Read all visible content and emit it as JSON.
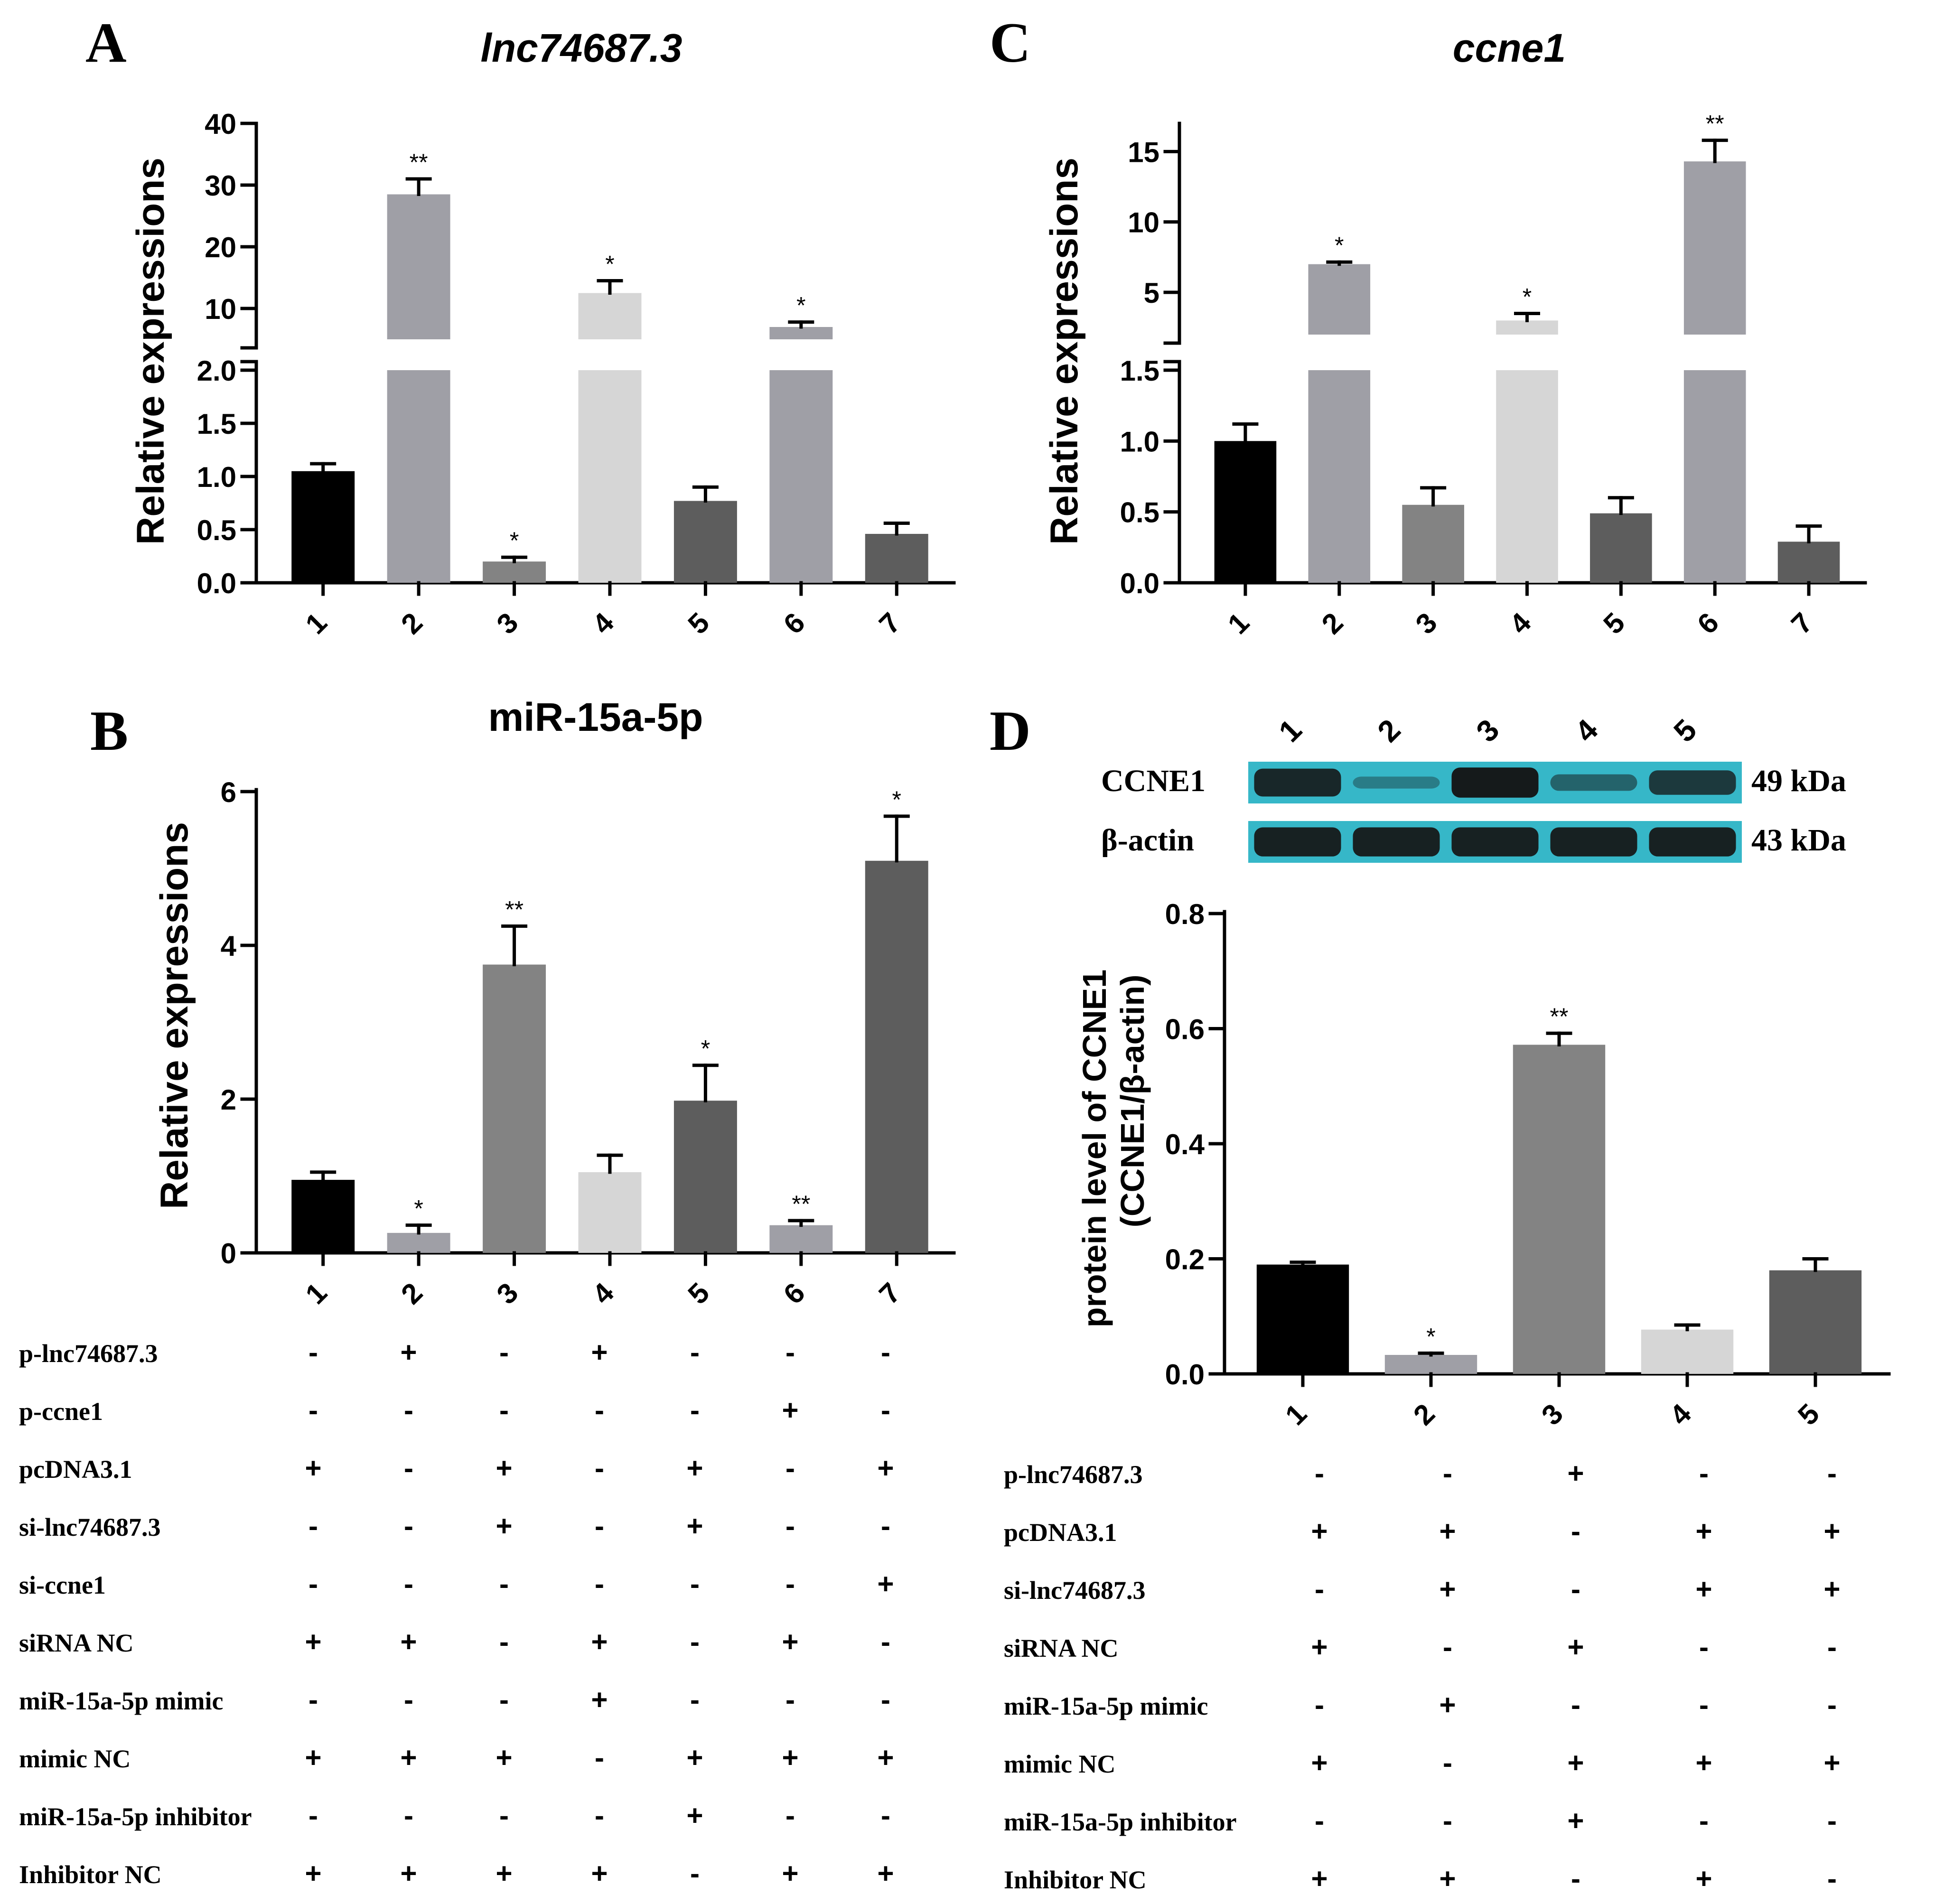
{
  "colors": {
    "black": "#000000",
    "dark_gray": "#5d5d5d",
    "mid_gray": "#838383",
    "light_gray": "#9f9fa6",
    "pale_gray": "#d6d6d6",
    "blot_bg": "#36b7c8",
    "band": "#141414"
  },
  "chart_data": [
    {
      "id": "A",
      "panel_letter": "A",
      "type": "bar",
      "title": "lnc74687.3",
      "ylabel": "Relative expressions",
      "categories": [
        "1",
        "2",
        "3",
        "4",
        "5",
        "6",
        "7"
      ],
      "values": [
        1.05,
        28.5,
        0.2,
        12.5,
        0.77,
        7.0,
        0.46
      ],
      "errors": [
        0.07,
        2.5,
        0.04,
        2.0,
        0.13,
        0.8,
        0.1
      ],
      "significance": [
        "",
        "**",
        "*",
        "*",
        "",
        "*",
        ""
      ],
      "bar_colors": [
        "black",
        "light_gray",
        "mid_gray",
        "pale_gray",
        "dark_gray",
        "light_gray",
        "dark_gray"
      ],
      "broken_axis": {
        "lower_range": [
          0,
          2.0
        ],
        "upper_range": [
          5,
          40
        ],
        "lower_ticks": [
          "0.0",
          "0.5",
          "1.0",
          "1.5",
          "2.0"
        ],
        "upper_ticks": [
          "10",
          "20",
          "30",
          "40"
        ]
      }
    },
    {
      "id": "C",
      "panel_letter": "C",
      "type": "bar",
      "title": "ccne1",
      "ylabel": "Relative expressions",
      "categories": [
        "1",
        "2",
        "3",
        "4",
        "5",
        "6",
        "7"
      ],
      "values": [
        1.0,
        7.0,
        0.55,
        3.0,
        0.49,
        14.3,
        0.29
      ],
      "errors": [
        0.12,
        0.15,
        0.12,
        0.5,
        0.11,
        1.5,
        0.11
      ],
      "significance": [
        "",
        "*",
        "",
        "*",
        "",
        "**",
        ""
      ],
      "bar_colors": [
        "black",
        "light_gray",
        "mid_gray",
        "pale_gray",
        "dark_gray",
        "light_gray",
        "dark_gray"
      ],
      "broken_axis": {
        "lower_range": [
          0,
          1.5
        ],
        "upper_range": [
          2,
          17
        ],
        "lower_ticks": [
          "0.0",
          "0.5",
          "1.0",
          "1.5"
        ],
        "upper_ticks": [
          "5",
          "10",
          "15"
        ]
      }
    },
    {
      "id": "B",
      "panel_letter": "B",
      "type": "bar",
      "title": "miR-15a-5p",
      "ylabel": "Relative expressions",
      "categories": [
        "1",
        "2",
        "3",
        "4",
        "5",
        "6",
        "7"
      ],
      "values": [
        0.95,
        0.26,
        3.75,
        1.05,
        1.98,
        0.36,
        5.1
      ],
      "errors": [
        0.1,
        0.1,
        0.5,
        0.22,
        0.46,
        0.06,
        0.58
      ],
      "significance": [
        "",
        "*",
        "**",
        "",
        "*",
        "**",
        "*"
      ],
      "bar_colors": [
        "black",
        "light_gray",
        "mid_gray",
        "pale_gray",
        "dark_gray",
        "light_gray",
        "dark_gray"
      ],
      "ylim": [
        0,
        6
      ],
      "yticks": [
        "0",
        "2",
        "4",
        "6"
      ]
    },
    {
      "id": "D",
      "panel_letter": "D",
      "type": "bar",
      "title": "",
      "ylabel_line1": "protein level of CCNE1",
      "ylabel_line2": "(CCNE1/β-actin)",
      "categories": [
        "1",
        "2",
        "3",
        "4",
        "5"
      ],
      "values": [
        0.19,
        0.033,
        0.572,
        0.077,
        0.18
      ],
      "errors": [
        0.004,
        0.003,
        0.02,
        0.008,
        0.02
      ],
      "significance": [
        "",
        "*",
        "**",
        "",
        ""
      ],
      "bar_colors": [
        "black",
        "light_gray",
        "mid_gray",
        "pale_gray",
        "dark_gray"
      ],
      "ylim": [
        0,
        0.8
      ],
      "yticks": [
        "0.0",
        "0.2",
        "0.4",
        "0.6",
        "0.8"
      ]
    }
  ],
  "blot": {
    "lane_labels": [
      "1",
      "2",
      "3",
      "4",
      "5"
    ],
    "rows": [
      {
        "name": "CCNE1",
        "size": "49 kDa",
        "intensity": [
          0.85,
          0.15,
          0.95,
          0.35,
          0.7
        ]
      },
      {
        "name": "β-actin",
        "size": "43 kDa",
        "intensity": [
          0.9,
          0.9,
          0.9,
          0.9,
          0.9
        ]
      }
    ]
  },
  "tables": {
    "B": {
      "rows": [
        {
          "label": "p-lnc74687.3",
          "marks": [
            "-",
            "+",
            "-",
            "+",
            "-",
            "-",
            "-"
          ]
        },
        {
          "label": "p-ccne1",
          "marks": [
            "-",
            "-",
            "-",
            "-",
            "-",
            "+",
            "-"
          ]
        },
        {
          "label": "pcDNA3.1",
          "marks": [
            "+",
            "-",
            "+",
            "-",
            "+",
            "-",
            "+"
          ]
        },
        {
          "label": "si-lnc74687.3",
          "marks": [
            "-",
            "-",
            "+",
            "-",
            "+",
            "-",
            "-"
          ]
        },
        {
          "label": "si-ccne1",
          "marks": [
            "-",
            "-",
            "-",
            "-",
            "-",
            "-",
            "+"
          ]
        },
        {
          "label": "siRNA NC",
          "marks": [
            "+",
            "+",
            "-",
            "+",
            "-",
            "+",
            "-"
          ]
        },
        {
          "label": "miR-15a-5p mimic",
          "marks": [
            "-",
            "-",
            "-",
            "+",
            "-",
            "-",
            "-"
          ]
        },
        {
          "label": "mimic NC",
          "marks": [
            "+",
            "+",
            "+",
            "-",
            "+",
            "+",
            "+"
          ]
        },
        {
          "label": "miR-15a-5p inhibitor",
          "marks": [
            "-",
            "-",
            "-",
            "-",
            "+",
            "-",
            "-"
          ]
        },
        {
          "label": "Inhibitor NC",
          "marks": [
            "+",
            "+",
            "+",
            "+",
            "-",
            "+",
            "+"
          ]
        }
      ]
    },
    "D": {
      "rows": [
        {
          "label": "p-lnc74687.3",
          "marks": [
            "-",
            "-",
            "+",
            "-",
            "-"
          ]
        },
        {
          "label": "pcDNA3.1",
          "marks": [
            "+",
            "+",
            "-",
            "+",
            "+"
          ]
        },
        {
          "label": "si-lnc74687.3",
          "marks": [
            "-",
            "+",
            "-",
            "+",
            "+"
          ]
        },
        {
          "label": "siRNA NC",
          "marks": [
            "+",
            "-",
            "+",
            "-",
            "-"
          ]
        },
        {
          "label": "miR-15a-5p mimic",
          "marks": [
            "-",
            "+",
            "-",
            "-",
            "-"
          ]
        },
        {
          "label": "mimic NC",
          "marks": [
            "+",
            "-",
            "+",
            "+",
            "+"
          ]
        },
        {
          "label": "miR-15a-5p inhibitor",
          "marks": [
            "-",
            "-",
            "+",
            "-",
            "-"
          ]
        },
        {
          "label": "Inhibitor NC",
          "marks": [
            "+",
            "+",
            "-",
            "+",
            "-"
          ]
        }
      ]
    }
  }
}
